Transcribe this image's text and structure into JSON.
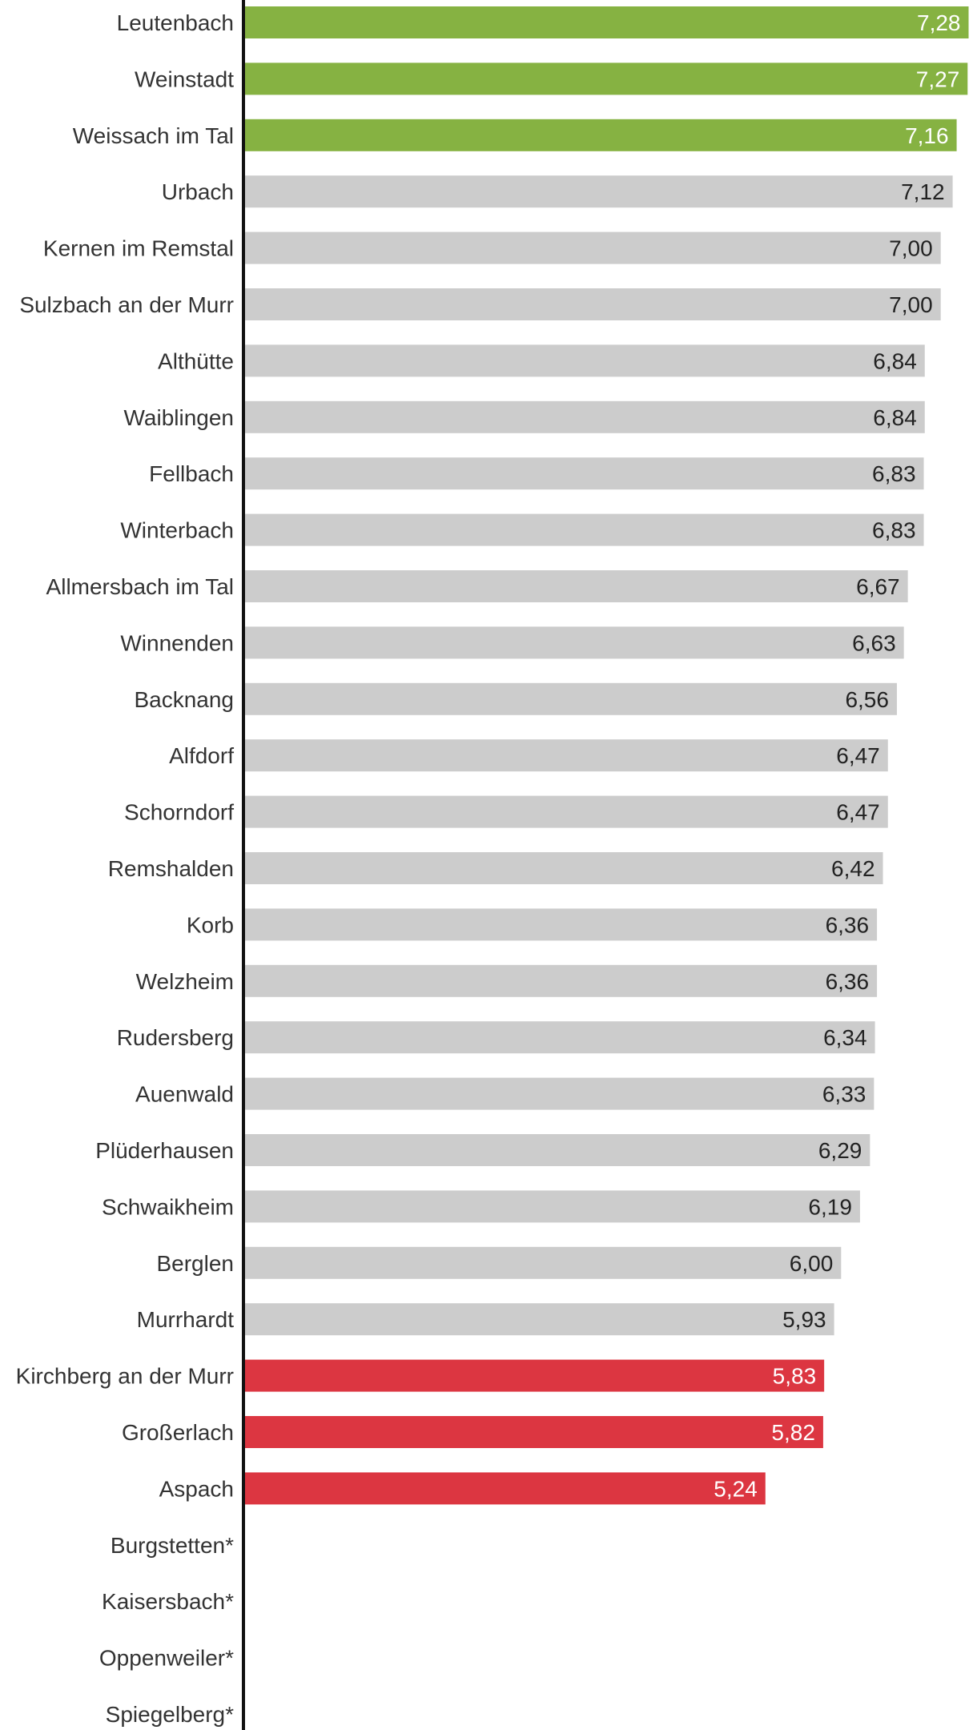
{
  "chart_data": {
    "type": "bar",
    "orientation": "horizontal",
    "title": "",
    "xlabel": "",
    "ylabel": "",
    "xlim": [
      0,
      7.3
    ],
    "grid": false,
    "colors": {
      "high": "#86b242",
      "neutral": "#cccccc",
      "low": "#dc3641",
      "label_dark": "#222222",
      "label_light": "#ffffff",
      "axis": "#111111"
    },
    "items": [
      {
        "name": "Leutenbach",
        "value": 7.28,
        "display": "7,28",
        "group": "high"
      },
      {
        "name": "Weinstadt",
        "value": 7.27,
        "display": "7,27",
        "group": "high"
      },
      {
        "name": "Weissach im Tal",
        "value": 7.16,
        "display": "7,16",
        "group": "high"
      },
      {
        "name": "Urbach",
        "value": 7.12,
        "display": "7,12",
        "group": "neutral"
      },
      {
        "name": "Kernen im Remstal",
        "value": 7.0,
        "display": "7,00",
        "group": "neutral"
      },
      {
        "name": "Sulzbach an der Murr",
        "value": 7.0,
        "display": "7,00",
        "group": "neutral"
      },
      {
        "name": "Althütte",
        "value": 6.84,
        "display": "6,84",
        "group": "neutral"
      },
      {
        "name": "Waiblingen",
        "value": 6.84,
        "display": "6,84",
        "group": "neutral"
      },
      {
        "name": "Fellbach",
        "value": 6.83,
        "display": "6,83",
        "group": "neutral"
      },
      {
        "name": "Winterbach",
        "value": 6.83,
        "display": "6,83",
        "group": "neutral"
      },
      {
        "name": "Allmersbach im Tal",
        "value": 6.67,
        "display": "6,67",
        "group": "neutral"
      },
      {
        "name": "Winnenden",
        "value": 6.63,
        "display": "6,63",
        "group": "neutral"
      },
      {
        "name": "Backnang",
        "value": 6.56,
        "display": "6,56",
        "group": "neutral"
      },
      {
        "name": "Alfdorf",
        "value": 6.47,
        "display": "6,47",
        "group": "neutral"
      },
      {
        "name": "Schorndorf",
        "value": 6.47,
        "display": "6,47",
        "group": "neutral"
      },
      {
        "name": "Remshalden",
        "value": 6.42,
        "display": "6,42",
        "group": "neutral"
      },
      {
        "name": "Korb",
        "value": 6.36,
        "display": "6,36",
        "group": "neutral"
      },
      {
        "name": "Welzheim",
        "value": 6.36,
        "display": "6,36",
        "group": "neutral"
      },
      {
        "name": "Rudersberg",
        "value": 6.34,
        "display": "6,34",
        "group": "neutral"
      },
      {
        "name": "Auenwald",
        "value": 6.33,
        "display": "6,33",
        "group": "neutral"
      },
      {
        "name": "Plüderhausen",
        "value": 6.29,
        "display": "6,29",
        "group": "neutral"
      },
      {
        "name": "Schwaikheim",
        "value": 6.19,
        "display": "6,19",
        "group": "neutral"
      },
      {
        "name": "Berglen",
        "value": 6.0,
        "display": "6,00",
        "group": "neutral"
      },
      {
        "name": "Murrhardt",
        "value": 5.93,
        "display": "5,93",
        "group": "neutral"
      },
      {
        "name": "Kirchberg an der Murr",
        "value": 5.83,
        "display": "5,83",
        "group": "low"
      },
      {
        "name": "Großerlach",
        "value": 5.82,
        "display": "5,82",
        "group": "low"
      },
      {
        "name": "Aspach",
        "value": 5.24,
        "display": "5,24",
        "group": "low"
      },
      {
        "name": "Burgstetten*",
        "value": null,
        "display": null,
        "group": "none"
      },
      {
        "name": "Kaisersbach*",
        "value": null,
        "display": null,
        "group": "none"
      },
      {
        "name": "Oppenweiler*",
        "value": null,
        "display": null,
        "group": "none"
      },
      {
        "name": "Spiegelberg*",
        "value": null,
        "display": null,
        "group": "none"
      }
    ]
  }
}
